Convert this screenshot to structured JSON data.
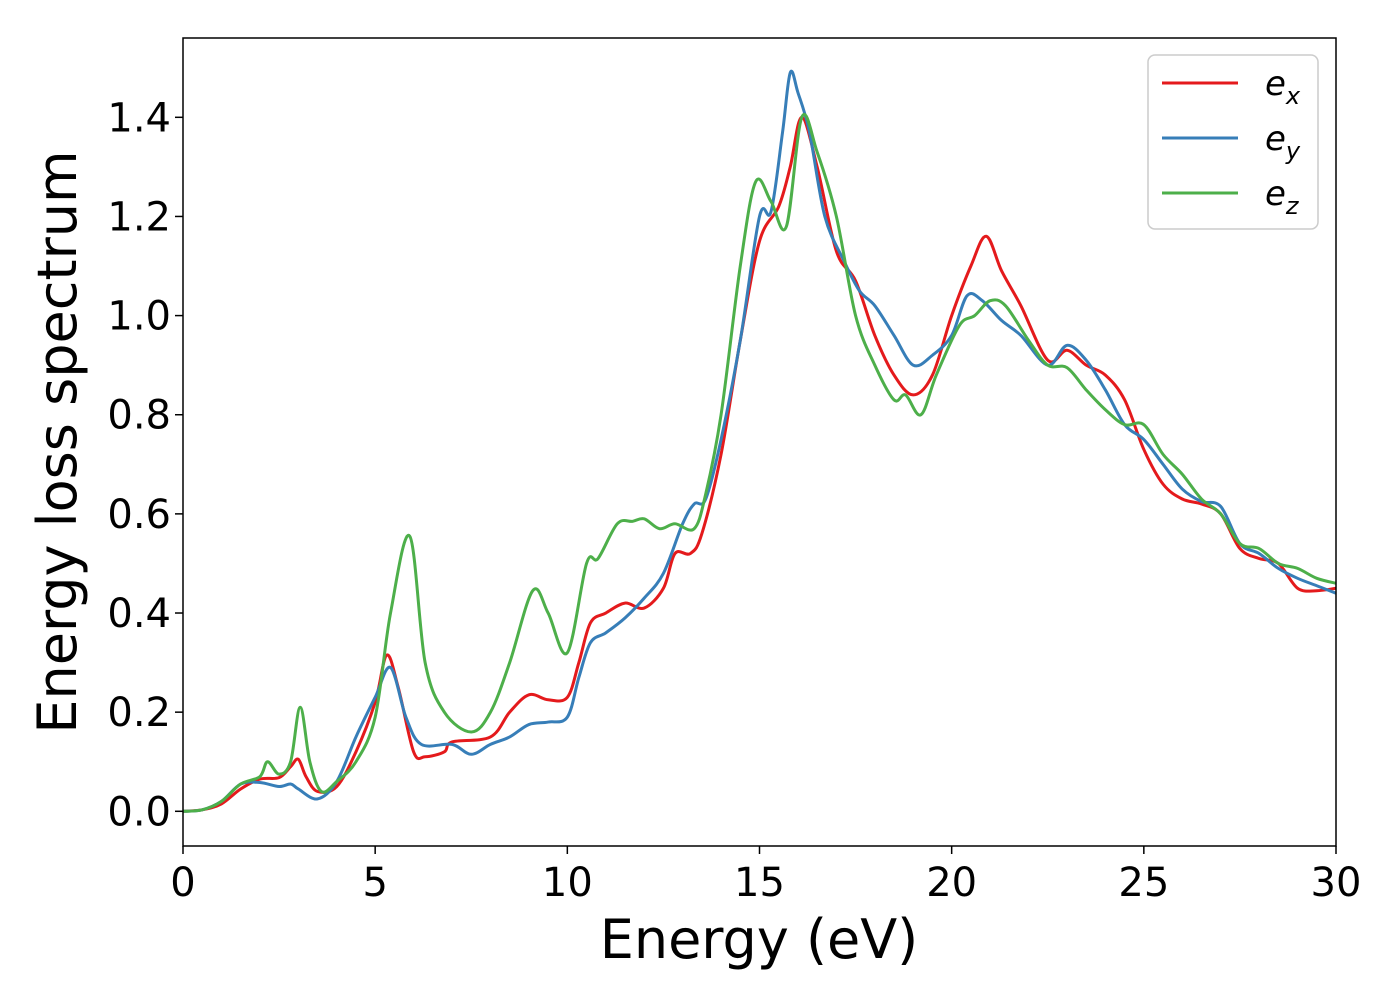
{
  "chart_data": {
    "type": "line",
    "xlabel": "Energy (eV)",
    "ylabel": "Energy loss spectrum",
    "xlim": [
      0,
      30
    ],
    "ylim": [
      -0.07,
      1.56
    ],
    "xticks": [
      0,
      5,
      10,
      15,
      20,
      25,
      30
    ],
    "yticks": [
      0.0,
      0.2,
      0.4,
      0.6,
      0.8,
      1.0,
      1.2,
      1.4
    ],
    "xtick_labels": [
      "0",
      "5",
      "10",
      "15",
      "20",
      "25",
      "30"
    ],
    "ytick_labels": [
      "0.0",
      "0.2",
      "0.4",
      "0.6",
      "0.8",
      "1.0",
      "1.2",
      "1.4"
    ],
    "grid": false,
    "legend": "top-right",
    "series": [
      {
        "name": "e_x",
        "label_base": "e",
        "label_sub": "x",
        "color": "#e41a1c",
        "points": [
          [
            0,
            0
          ],
          [
            0.5,
            0.003
          ],
          [
            1,
            0.015
          ],
          [
            1.5,
            0.045
          ],
          [
            2,
            0.065
          ],
          [
            2.5,
            0.068
          ],
          [
            2.8,
            0.09
          ],
          [
            3,
            0.105
          ],
          [
            3.2,
            0.07
          ],
          [
            3.5,
            0.04
          ],
          [
            4,
            0.05
          ],
          [
            4.5,
            0.12
          ],
          [
            5,
            0.22
          ],
          [
            5.3,
            0.315
          ],
          [
            5.6,
            0.25
          ],
          [
            6,
            0.12
          ],
          [
            6.3,
            0.11
          ],
          [
            6.8,
            0.12
          ],
          [
            7,
            0.14
          ],
          [
            8,
            0.15
          ],
          [
            8.5,
            0.2
          ],
          [
            9,
            0.235
          ],
          [
            9.5,
            0.225
          ],
          [
            10,
            0.23
          ],
          [
            10.3,
            0.3
          ],
          [
            10.6,
            0.38
          ],
          [
            11,
            0.4
          ],
          [
            11.5,
            0.42
          ],
          [
            12,
            0.41
          ],
          [
            12.5,
            0.45
          ],
          [
            12.8,
            0.52
          ],
          [
            13.2,
            0.52
          ],
          [
            13.5,
            0.56
          ],
          [
            14,
            0.72
          ],
          [
            14.5,
            0.95
          ],
          [
            15,
            1.15
          ],
          [
            15.5,
            1.22
          ],
          [
            15.8,
            1.3
          ],
          [
            16.1,
            1.4
          ],
          [
            16.5,
            1.3
          ],
          [
            17,
            1.13
          ],
          [
            17.5,
            1.07
          ],
          [
            18,
            0.96
          ],
          [
            18.5,
            0.88
          ],
          [
            19,
            0.84
          ],
          [
            19.5,
            0.88
          ],
          [
            20,
            1.0
          ],
          [
            20.5,
            1.1
          ],
          [
            20.9,
            1.16
          ],
          [
            21.3,
            1.09
          ],
          [
            21.8,
            1.02
          ],
          [
            22.5,
            0.91
          ],
          [
            23,
            0.93
          ],
          [
            23.5,
            0.9
          ],
          [
            24,
            0.88
          ],
          [
            24.5,
            0.83
          ],
          [
            25,
            0.73
          ],
          [
            25.5,
            0.66
          ],
          [
            26,
            0.63
          ],
          [
            26.5,
            0.62
          ],
          [
            27,
            0.6
          ],
          [
            27.5,
            0.53
          ],
          [
            28,
            0.51
          ],
          [
            28.5,
            0.5
          ],
          [
            29,
            0.45
          ],
          [
            29.5,
            0.445
          ],
          [
            30,
            0.45
          ]
        ]
      },
      {
        "name": "e_y",
        "label_base": "e",
        "label_sub": "y",
        "color": "#377eb8",
        "points": [
          [
            0,
            0
          ],
          [
            0.5,
            0.003
          ],
          [
            1,
            0.02
          ],
          [
            1.5,
            0.055
          ],
          [
            2,
            0.058
          ],
          [
            2.5,
            0.05
          ],
          [
            2.8,
            0.055
          ],
          [
            3,
            0.045
          ],
          [
            3.5,
            0.025
          ],
          [
            4,
            0.06
          ],
          [
            4.5,
            0.15
          ],
          [
            5,
            0.23
          ],
          [
            5.4,
            0.29
          ],
          [
            5.8,
            0.19
          ],
          [
            6.2,
            0.135
          ],
          [
            7,
            0.135
          ],
          [
            7.5,
            0.115
          ],
          [
            8,
            0.135
          ],
          [
            8.5,
            0.15
          ],
          [
            9,
            0.175
          ],
          [
            9.5,
            0.18
          ],
          [
            10,
            0.19
          ],
          [
            10.3,
            0.27
          ],
          [
            10.6,
            0.34
          ],
          [
            11,
            0.36
          ],
          [
            11.5,
            0.39
          ],
          [
            12,
            0.43
          ],
          [
            12.5,
            0.48
          ],
          [
            13,
            0.58
          ],
          [
            13.3,
            0.62
          ],
          [
            13.6,
            0.63
          ],
          [
            14,
            0.75
          ],
          [
            14.5,
            0.95
          ],
          [
            15,
            1.2
          ],
          [
            15.3,
            1.21
          ],
          [
            15.6,
            1.37
          ],
          [
            15.8,
            1.49
          ],
          [
            16,
            1.45
          ],
          [
            16.3,
            1.37
          ],
          [
            16.7,
            1.2
          ],
          [
            17.2,
            1.11
          ],
          [
            17.6,
            1.05
          ],
          [
            18,
            1.02
          ],
          [
            18.5,
            0.96
          ],
          [
            19,
            0.9
          ],
          [
            19.5,
            0.92
          ],
          [
            20,
            0.96
          ],
          [
            20.4,
            1.04
          ],
          [
            20.8,
            1.03
          ],
          [
            21.3,
            0.99
          ],
          [
            21.8,
            0.96
          ],
          [
            22.5,
            0.9
          ],
          [
            23,
            0.94
          ],
          [
            23.5,
            0.91
          ],
          [
            24,
            0.85
          ],
          [
            24.5,
            0.78
          ],
          [
            25,
            0.75
          ],
          [
            25.5,
            0.7
          ],
          [
            26,
            0.65
          ],
          [
            26.5,
            0.625
          ],
          [
            27,
            0.615
          ],
          [
            27.5,
            0.54
          ],
          [
            28,
            0.52
          ],
          [
            28.5,
            0.49
          ],
          [
            29,
            0.47
          ],
          [
            29.5,
            0.455
          ],
          [
            30,
            0.44
          ]
        ]
      },
      {
        "name": "e_z",
        "label_base": "e",
        "label_sub": "z",
        "color": "#4daf4a",
        "points": [
          [
            0,
            0
          ],
          [
            0.5,
            0.003
          ],
          [
            1,
            0.02
          ],
          [
            1.5,
            0.055
          ],
          [
            2,
            0.07
          ],
          [
            2.2,
            0.1
          ],
          [
            2.5,
            0.075
          ],
          [
            2.8,
            0.1
          ],
          [
            3.05,
            0.21
          ],
          [
            3.3,
            0.1
          ],
          [
            3.6,
            0.04
          ],
          [
            4,
            0.06
          ],
          [
            4.5,
            0.1
          ],
          [
            5,
            0.19
          ],
          [
            5.4,
            0.4
          ],
          [
            5.9,
            0.555
          ],
          [
            6.3,
            0.3
          ],
          [
            6.8,
            0.2
          ],
          [
            7.5,
            0.16
          ],
          [
            8,
            0.2
          ],
          [
            8.5,
            0.3
          ],
          [
            9.1,
            0.445
          ],
          [
            9.5,
            0.4
          ],
          [
            10,
            0.32
          ],
          [
            10.5,
            0.5
          ],
          [
            10.8,
            0.51
          ],
          [
            11.3,
            0.58
          ],
          [
            11.7,
            0.585
          ],
          [
            12,
            0.59
          ],
          [
            12.4,
            0.57
          ],
          [
            12.8,
            0.58
          ],
          [
            13.3,
            0.57
          ],
          [
            13.6,
            0.64
          ],
          [
            14,
            0.8
          ],
          [
            14.5,
            1.1
          ],
          [
            14.9,
            1.27
          ],
          [
            15.3,
            1.23
          ],
          [
            15.7,
            1.18
          ],
          [
            16.1,
            1.4
          ],
          [
            16.5,
            1.33
          ],
          [
            17,
            1.2
          ],
          [
            17.5,
            1.0
          ],
          [
            18,
            0.9
          ],
          [
            18.5,
            0.83
          ],
          [
            18.8,
            0.84
          ],
          [
            19.2,
            0.8
          ],
          [
            19.6,
            0.88
          ],
          [
            20.2,
            0.98
          ],
          [
            20.6,
            1.0
          ],
          [
            21,
            1.03
          ],
          [
            21.4,
            1.02
          ],
          [
            22,
            0.95
          ],
          [
            22.5,
            0.9
          ],
          [
            23,
            0.895
          ],
          [
            23.5,
            0.85
          ],
          [
            24,
            0.81
          ],
          [
            24.5,
            0.78
          ],
          [
            25,
            0.78
          ],
          [
            25.5,
            0.72
          ],
          [
            26,
            0.68
          ],
          [
            26.5,
            0.63
          ],
          [
            27,
            0.6
          ],
          [
            27.5,
            0.54
          ],
          [
            28,
            0.53
          ],
          [
            28.5,
            0.5
          ],
          [
            29,
            0.49
          ],
          [
            29.5,
            0.47
          ],
          [
            30,
            0.46
          ]
        ]
      }
    ]
  }
}
